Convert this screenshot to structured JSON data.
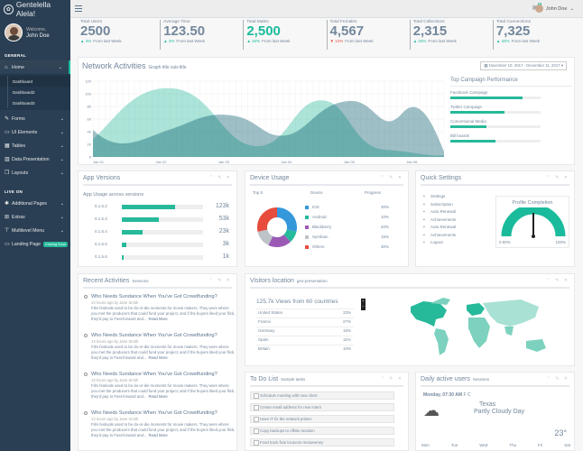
{
  "brand": "Gentelella Alela!",
  "profile": {
    "welcome": "Welcome,",
    "name": "John Doe"
  },
  "sidebar": {
    "general": "GENERAL",
    "items": [
      {
        "label": "Home",
        "icon": "home-icon"
      },
      {
        "label": "Forms",
        "icon": "edit-icon"
      },
      {
        "label": "UI Elements",
        "icon": "desktop-icon"
      },
      {
        "label": "Tables",
        "icon": "table-icon"
      },
      {
        "label": "Data Presentation",
        "icon": "chart-icon"
      },
      {
        "label": "Layouts",
        "icon": "clone-icon"
      }
    ],
    "home_sub": [
      "Dashboard",
      "Dashboard2",
      "Dashboard3"
    ],
    "live": "LIVE ON",
    "live_items": [
      {
        "label": "Additional Pages",
        "icon": "bug-icon"
      },
      {
        "label": "Extras",
        "icon": "windows-icon"
      },
      {
        "label": "Multilevel Menu",
        "icon": "sitemap-icon"
      },
      {
        "label": "Landing Page",
        "icon": "laptop-icon",
        "badge": "Coming Soon"
      }
    ]
  },
  "topbar": {
    "user": "John Doe",
    "badge": "6"
  },
  "tiles": [
    {
      "label": "Total Users",
      "value": "2500",
      "pct": "4%",
      "foot": "From last Week",
      "dir": "up"
    },
    {
      "label": "Average Time",
      "value": "123.50",
      "pct": "3%",
      "foot": "From last Week",
      "dir": "up"
    },
    {
      "label": "Total Males",
      "value": "2,500",
      "pct": "34%",
      "foot": "From last Week",
      "dir": "up",
      "green": true
    },
    {
      "label": "Total Females",
      "value": "4,567",
      "pct": "12%",
      "foot": "From last Week",
      "dir": "down"
    },
    {
      "label": "Total Collections",
      "value": "2,315",
      "pct": "34%",
      "foot": "From last Week",
      "dir": "up"
    },
    {
      "label": "Total Connections",
      "value": "7,325",
      "pct": "34%",
      "foot": "From last Week",
      "dir": "up"
    }
  ],
  "network": {
    "title": "Network Activities",
    "subtitle": "Graph title sub-title",
    "daterange": "November 10, 2017 - December 11, 2017",
    "yticks": [
      "120",
      "100",
      "80",
      "60",
      "40",
      "20",
      "0"
    ],
    "xticks": [
      "Jan 01",
      "Jan 02",
      "Jan 03",
      "Jan 04",
      "Jan 05",
      "Jan 06"
    ]
  },
  "campaign": {
    "title": "Top Campaign Performance",
    "items": [
      {
        "label": "Facebook Campaign",
        "value": 0.8
      },
      {
        "label": "Twitter Campaign",
        "value": 0.6
      },
      {
        "label": "Conventional Media",
        "value": 0.4
      },
      {
        "label": "Bill boards",
        "value": 0.5
      }
    ]
  },
  "appversions": {
    "title": "App Versions",
    "subtitle": "App Usage across versions",
    "rows": [
      {
        "v": "0.1.5.2",
        "val": "123k",
        "frac": 0.66
      },
      {
        "v": "0.1.5.3",
        "val": "53k",
        "frac": 0.45
      },
      {
        "v": "0.1.5.4",
        "val": "23k",
        "frac": 0.25
      },
      {
        "v": "0.1.5.5",
        "val": "3k",
        "frac": 0.05
      },
      {
        "v": "0.1.5.6",
        "val": "1k",
        "frac": 0.02
      }
    ]
  },
  "device": {
    "title": "Device Usage",
    "h1": "Top 5",
    "h2": "Device",
    "h3": "Progress",
    "rows": [
      {
        "name": "IOS",
        "pct": "30%",
        "color": "#3498DB"
      },
      {
        "name": "Android",
        "pct": "10%",
        "color": "#26B99A"
      },
      {
        "name": "Blackberry",
        "pct": "20%",
        "color": "#9B59B6"
      },
      {
        "name": "Symbian",
        "pct": "15%",
        "color": "#BDC3C7"
      },
      {
        "name": "Others",
        "pct": "30%",
        "color": "#E74C3C"
      }
    ]
  },
  "quick": {
    "title": "Quick Settings",
    "items": [
      "Settings",
      "Subscription",
      "Auto Renewal",
      "Achievements",
      "Auto Renewal",
      "Achievements",
      "Logout"
    ],
    "gauge_title": "Profile Completion",
    "gmin": "0.00%",
    "gmax": "100%"
  },
  "activities": {
    "title": "Recent Activities",
    "subtitle": "Sessions",
    "items": [
      {
        "h": "Who Needs Sundance When You've Got Crowdfunding?",
        "by": "13 hours ago by Jane Smith",
        "p": "Film festivals used to be do-or-die moments for movie makers. They were where you met the producers that could fund your project, and if the buyers liked your flick, they'd pay to Fast-forward and...",
        "more": "Read More"
      },
      {
        "h": "Who Needs Sundance When You've Got Crowdfunding?",
        "by": "13 hours ago by Jane Smith",
        "p": "Film festivals used to be do-or-die moments for movie makers. They were where you met the producers that could fund your project, and if the buyers liked your flick, they'd pay to Fast-forward and...",
        "more": "Read More"
      },
      {
        "h": "Who Needs Sundance When You've Got Crowdfunding?",
        "by": "13 hours ago by Jane Smith",
        "p": "Film festivals used to be do-or-die moments for movie makers. They were where you met the producers that could fund your project, and if the buyers liked your flick, they'd pay to Fast-forward and...",
        "more": "Read More"
      },
      {
        "h": "Who Needs Sundance When You've Got Crowdfunding?",
        "by": "13 hours ago by Jane Smith",
        "p": "Film festivals used to be do-or-die moments for movie makers. They were where you met the producers that could fund your project, and if the buyers liked your flick, they'd pay to Fast-forward and...",
        "more": "Read More"
      }
    ]
  },
  "visitors": {
    "title": "Visitors location",
    "subtitle": "geo-presentation",
    "headline": "125.7k Views from 60 countries",
    "rows": [
      {
        "c": "United States",
        "p": "33%"
      },
      {
        "c": "France",
        "p": "27%"
      },
      {
        "c": "Germany",
        "p": "16%"
      },
      {
        "c": "Spain",
        "p": "11%"
      },
      {
        "c": "Britain",
        "p": "10%"
      }
    ]
  },
  "todo": {
    "title": "To Do List",
    "subtitle": "Sample tasks",
    "items": [
      "Schedule meeting with new client",
      "Create email address for new intern",
      "Have IT fix the network printer",
      "Copy backups to offsite location",
      "Food truck fixie locavors mcsweeney"
    ]
  },
  "daily": {
    "title": "Daily active users",
    "subtitle": "Sessions",
    "date": "Monday, 07:30 AM",
    "temp_unit": "F C",
    "city": "Texas",
    "cond": "Partly Cloudy Day",
    "temp": "23°",
    "days": [
      "Mon",
      "Tue",
      "Wed",
      "Thu",
      "Fri",
      "Sat"
    ]
  }
}
